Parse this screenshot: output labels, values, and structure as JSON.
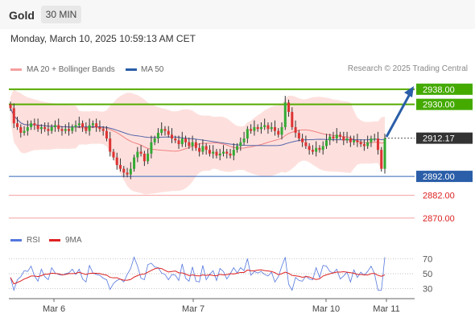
{
  "header": {
    "symbol": "Gold",
    "timeframe": "30 MIN",
    "datetime": "Monday, March 10, 2025 10:59:13 AM CET"
  },
  "legend": {
    "bb_label": "MA 20 + Bollinger Bands",
    "ma50_label": "MA 50",
    "copyright": "Research © 2025 Trading Central"
  },
  "rsi_legend": {
    "rsi_label": "RSI",
    "ma_label": "9MA"
  },
  "colors": {
    "up": "#33aa33",
    "down": "#dd3333",
    "resistance": "#55aa00",
    "support": "#3366bb",
    "target": "#2a5ea8",
    "bb_fill": "#fde0dd",
    "ma50": "#5566aa",
    "rsi": "#5577dd",
    "rsi_ma": "#dd2222"
  },
  "chart_data": [
    {
      "type": "candlestick",
      "ylim": [
        2864,
        2946
      ],
      "x_ticks": [
        "Mar 6",
        "Mar 7",
        "Mar 10",
        "Mar 11"
      ],
      "levels": [
        {
          "value": 2938.0,
          "label": "2938.00",
          "kind": "target"
        },
        {
          "value": 2930.0,
          "label": "2930.00",
          "kind": "resistance"
        },
        {
          "value": 2912.17,
          "label": "2912.17",
          "kind": "last"
        },
        {
          "value": 2892.0,
          "label": "2892.00",
          "kind": "pivot"
        },
        {
          "value": 2882.0,
          "label": "2882.00",
          "kind": "support"
        },
        {
          "value": 2870.0,
          "label": "2870.00",
          "kind": "support"
        }
      ],
      "closes": [
        2928,
        2920,
        2918,
        2915,
        2916,
        2918,
        2920,
        2919,
        2917,
        2918,
        2917,
        2916,
        2918,
        2919,
        2917,
        2916,
        2917,
        2916,
        2918,
        2919,
        2920,
        2918,
        2916,
        2919,
        2920,
        2918,
        2917,
        2916,
        2912,
        2905,
        2902,
        2898,
        2896,
        2894,
        2893,
        2896,
        2902,
        2905,
        2904,
        2900,
        2904,
        2910,
        2912,
        2915,
        2917,
        2916,
        2914,
        2912,
        2911,
        2909,
        2912,
        2910,
        2908,
        2910,
        2907,
        2905,
        2908,
        2906,
        2904,
        2905,
        2903,
        2904,
        2905,
        2904,
        2903,
        2906,
        2908,
        2910,
        2912,
        2917,
        2916,
        2918,
        2917,
        2918,
        2919,
        2917,
        2918,
        2916,
        2914,
        2918,
        2931,
        2926,
        2918,
        2915,
        2912,
        2910,
        2908,
        2906,
        2905,
        2907,
        2906,
        2908,
        2911,
        2913,
        2912,
        2914,
        2913,
        2911,
        2912,
        2910,
        2911,
        2910,
        2909,
        2908,
        2910,
        2912,
        2912,
        2906,
        2896,
        2912
      ],
      "opens": [
        2930,
        2928,
        2920,
        2918,
        2915,
        2916,
        2918,
        2920,
        2919,
        2917,
        2918,
        2917,
        2916,
        2918,
        2919,
        2917,
        2916,
        2917,
        2916,
        2918,
        2919,
        2920,
        2918,
        2916,
        2919,
        2920,
        2918,
        2917,
        2916,
        2912,
        2905,
        2902,
        2898,
        2896,
        2894,
        2893,
        2896,
        2902,
        2905,
        2904,
        2900,
        2904,
        2910,
        2912,
        2915,
        2917,
        2916,
        2914,
        2912,
        2911,
        2909,
        2912,
        2910,
        2908,
        2910,
        2907,
        2905,
        2908,
        2906,
        2904,
        2905,
        2903,
        2904,
        2905,
        2904,
        2903,
        2906,
        2908,
        2910,
        2912,
        2917,
        2916,
        2918,
        2917,
        2918,
        2919,
        2917,
        2918,
        2916,
        2914,
        2918,
        2931,
        2926,
        2918,
        2915,
        2912,
        2910,
        2908,
        2906,
        2905,
        2907,
        2906,
        2908,
        2911,
        2913,
        2912,
        2914,
        2913,
        2911,
        2912,
        2910,
        2911,
        2910,
        2909,
        2908,
        2910,
        2912,
        2912,
        2906,
        2896
      ]
    },
    {
      "type": "line",
      "title": "RSI",
      "y_ticks": [
        70,
        50,
        30
      ],
      "ylim": [
        20,
        80
      ]
    }
  ]
}
